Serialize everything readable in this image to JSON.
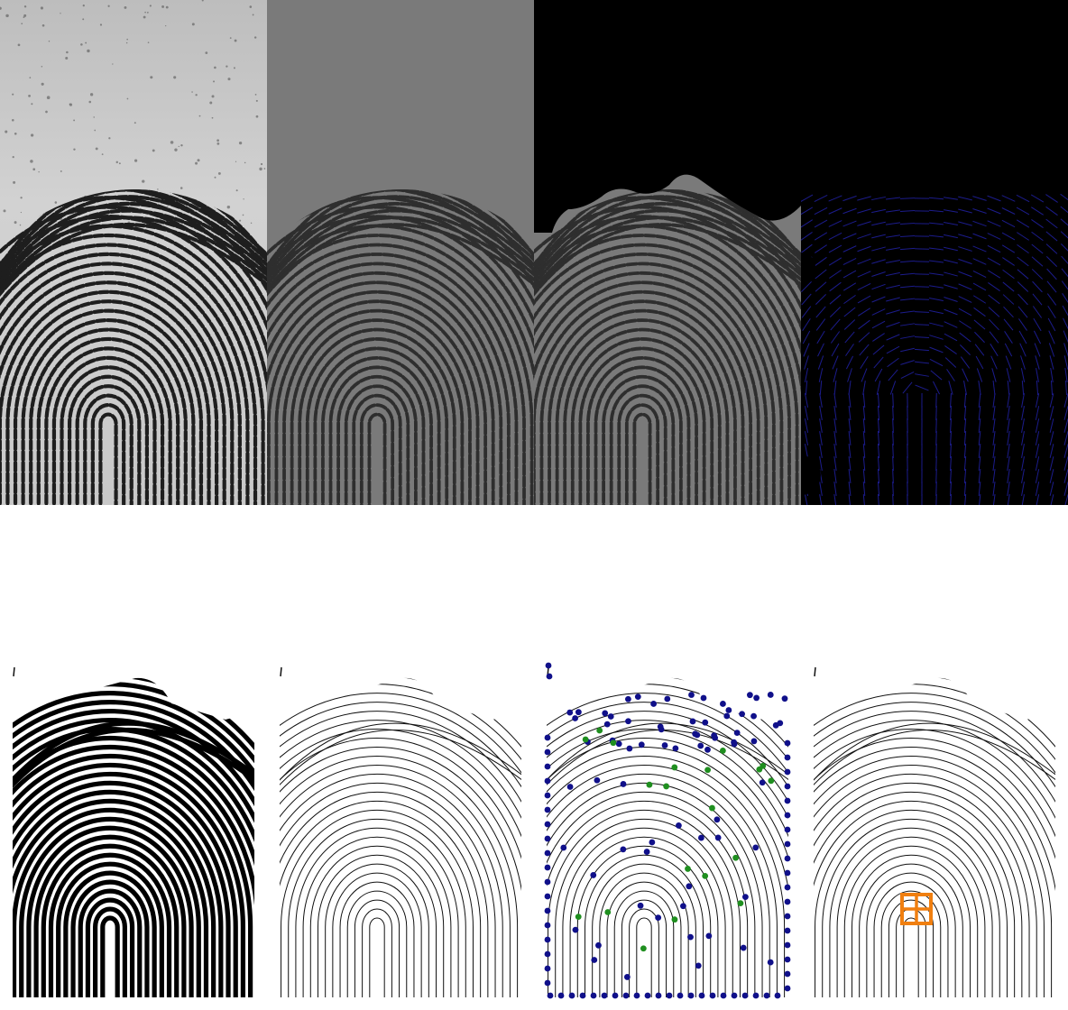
{
  "figure": {
    "panel_count": 8,
    "rows": 2,
    "columns": 4
  },
  "colors": {
    "raw_background": "#c9c9c9",
    "raw_ridge": "#1e1e1e",
    "normalized_background": "#7a7a7a",
    "normalized_ridge": "#2e2e2e",
    "mask": "#000000",
    "orientation_line": "#1c1c8c",
    "binary_ridge": "#000000",
    "thin_ridge": "#111111",
    "minutia_termination": "#10108a",
    "minutia_bifurcation": "#1f8f1f",
    "core_marker": "#f07f10",
    "page_background": "#ffffff"
  },
  "panels": [
    {
      "id": "raw-fingerprint",
      "kind": "grayscale-photo"
    },
    {
      "id": "normalized-fingerprint",
      "kind": "grayscale-photo"
    },
    {
      "id": "segmented-fingerprint",
      "kind": "masked-photo"
    },
    {
      "id": "orientation-field",
      "kind": "orientation-lines"
    },
    {
      "id": "binarized-fingerprint",
      "kind": "binary-image"
    },
    {
      "id": "thinned-fingerprint",
      "kind": "skeleton"
    },
    {
      "id": "minutiae-map",
      "kind": "skeleton-with-points"
    },
    {
      "id": "core-detection",
      "kind": "skeleton-with-marker"
    }
  ]
}
